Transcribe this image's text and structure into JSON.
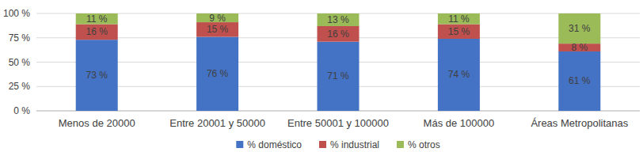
{
  "chart_data": {
    "type": "bar",
    "stacked": true,
    "data_labels": true,
    "grid": true,
    "legend": "bottom",
    "categories": [
      "Menos de 20000",
      "Entre 20001 y 50000",
      "Entre 50001 y 100000",
      "Más de 100000",
      "Áreas Metropolitanas"
    ],
    "series": [
      {
        "name": "% doméstico",
        "color": "#4472c4",
        "values": [
          73,
          76,
          71,
          74,
          61
        ],
        "value_labels": [
          "73 %",
          "76 %",
          "71 %",
          "74 %",
          "61 %"
        ]
      },
      {
        "name": "% industrial",
        "color": "#c0504d",
        "values": [
          16,
          15,
          16,
          15,
          8
        ],
        "value_labels": [
          "16 %",
          "15 %",
          "16 %",
          "15 %",
          "8 %"
        ]
      },
      {
        "name": "% otros",
        "color": "#9bbb59",
        "values": [
          11,
          9,
          13,
          11,
          31
        ],
        "value_labels": [
          "11 %",
          "9 %",
          "13 %",
          "11 %",
          "31 %"
        ]
      }
    ],
    "ylim": [
      0,
      100
    ],
    "yticks": [
      {
        "value": 0,
        "label": "0 %"
      },
      {
        "value": 25,
        "label": "25 %"
      },
      {
        "value": 50,
        "label": "50 %"
      },
      {
        "value": 75,
        "label": "75 %"
      },
      {
        "value": 100,
        "label": "100 %"
      }
    ]
  }
}
